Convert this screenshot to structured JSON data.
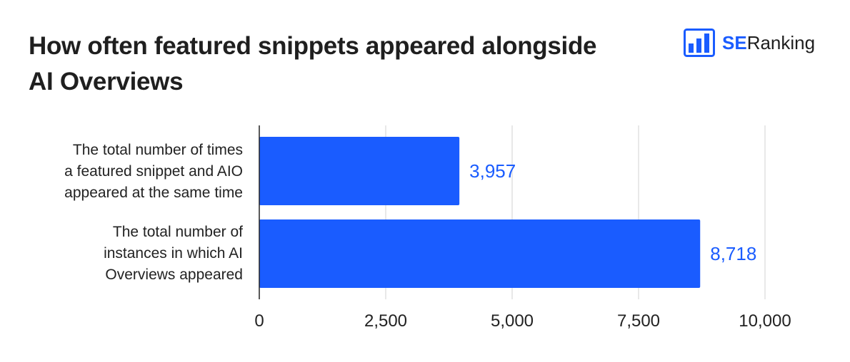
{
  "title_lines": [
    "How often featured snippets appeared alongside",
    "AI Overviews"
  ],
  "logo": {
    "brand_bold": "SE",
    "brand_rest": "Ranking",
    "icon": "bar-chart-logo-icon"
  },
  "colors": {
    "bar": "#1a5cff",
    "value_label": "#1a5cff",
    "grid": "#d9d9d9",
    "axis": "#222222"
  },
  "chart_data": {
    "type": "bar",
    "orientation": "horizontal",
    "categories": [
      "The total number of times a featured snippet and AIO appeared at the same time",
      "The total number of instances in which AI Overviews appeared"
    ],
    "category_lines": [
      [
        "The total number of times",
        "a featured snippet and AIO",
        "appeared at the same time"
      ],
      [
        "The total number of",
        "instances in which AI",
        "Overviews appeared"
      ]
    ],
    "values": [
      3957,
      8718
    ],
    "value_labels": [
      "3,957",
      "8,718"
    ],
    "xlim": [
      0,
      10000
    ],
    "xticks": [
      0,
      2500,
      5000,
      7500,
      10000
    ],
    "xtick_labels": [
      "0",
      "2,500",
      "5,000",
      "7,500",
      "10,000"
    ],
    "grid": true,
    "title": "How often featured snippets appeared alongside AI Overviews"
  }
}
